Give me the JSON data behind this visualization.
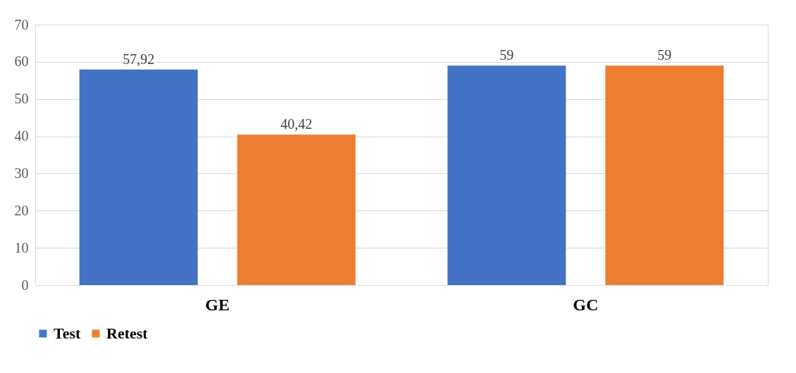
{
  "chart_data": {
    "type": "bar",
    "categories": [
      "GE",
      "GC"
    ],
    "series": [
      {
        "name": "Test",
        "color": "#4472c4",
        "values": [
          57.92,
          59
        ],
        "value_labels": [
          "57,92",
          "59"
        ]
      },
      {
        "name": "Retest",
        "color": "#ed7d31",
        "values": [
          40.42,
          59
        ],
        "value_labels": [
          "40,42",
          "59"
        ]
      }
    ],
    "ylim": [
      0,
      70
    ],
    "yticks": [
      0,
      10,
      20,
      30,
      40,
      50,
      60,
      70
    ],
    "grid": "y",
    "legend": "bottom"
  }
}
